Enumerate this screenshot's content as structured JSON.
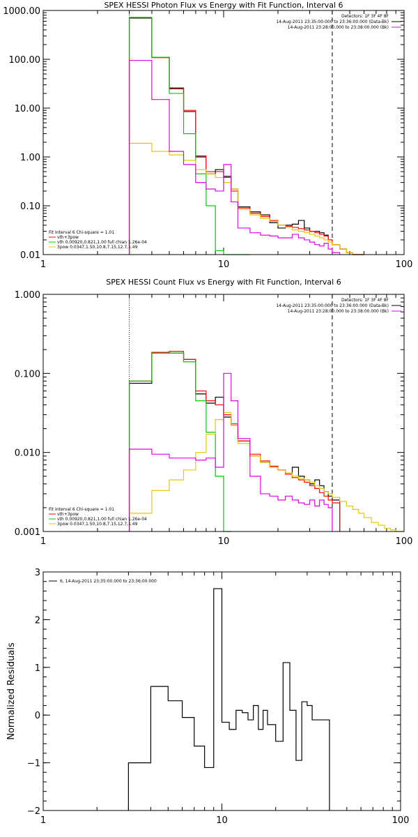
{
  "chart_data": [
    {
      "type": "line",
      "title": "SPEX HESSI Photon Flux vs Energy with Fit Function, Interval 6",
      "xscale": "log",
      "yscale": "log",
      "xlim": [
        1,
        100
      ],
      "ylim": [
        0.01,
        1000
      ],
      "x_ticks": [
        1,
        10,
        100
      ],
      "x_tick_labels": [
        "1",
        "10",
        "100"
      ],
      "y_ticks": [
        0.01,
        0.1,
        1,
        10,
        100,
        1000
      ],
      "y_tick_labels": [
        "0.01",
        "0.10",
        "1.00",
        "10.00",
        "100.00",
        "1000.00"
      ],
      "vlines": [
        {
          "x": 3,
          "style": "dotted",
          "color": "#000000"
        },
        {
          "x": 40,
          "style": "dashed",
          "color": "#000000"
        }
      ],
      "bin_edges": [
        3,
        4,
        5,
        6,
        7,
        8,
        9,
        10,
        11,
        12,
        14,
        16,
        18,
        20,
        22,
        24,
        26,
        28,
        30,
        32,
        34,
        36,
        38,
        40,
        44,
        48,
        52,
        56,
        60
      ],
      "series": [
        {
          "color": "#000000",
          "values": [
            700,
            110,
            25,
            8.5,
            1.0,
            0.45,
            0.55,
            0.4,
            0.22,
            0.095,
            0.075,
            0.065,
            0.045,
            0.035,
            0.04,
            0.042,
            0.05,
            0.035,
            0.03,
            0.03,
            0.028,
            0.025,
            0.02,
            0.016,
            0.013,
            0.011,
            0.01,
            0.0095
          ]
        },
        {
          "color": "#ff0000",
          "values": [
            720,
            108,
            26,
            9,
            1.05,
            0.5,
            0.5,
            0.38,
            0.2,
            0.09,
            0.07,
            0.06,
            0.05,
            0.04,
            0.038,
            0.036,
            0.034,
            0.032,
            0.03,
            0.028,
            0.026,
            0.024,
            0.02,
            0.016,
            0.013,
            0.011,
            0.01,
            0.0095
          ]
        },
        {
          "color": "#00c800",
          "values": [
            720,
            110,
            20,
            3,
            0.45,
            0.1,
            0.012,
            0.009,
            0.008,
            0.008
          ]
        },
        {
          "color": "#e6c800",
          "values": [
            1.9,
            1.3,
            1.1,
            0.85,
            0.55,
            0.45,
            0.38,
            0.3,
            0.22,
            0.085,
            0.065,
            0.055,
            0.048,
            0.04,
            0.036,
            0.032,
            0.03,
            0.028,
            0.026,
            0.024,
            0.022,
            0.02,
            0.018,
            0.016,
            0.013,
            0.011,
            0.01,
            0.0095
          ]
        },
        {
          "color": "#e000e0",
          "values": [
            95,
            15,
            1.3,
            0.7,
            0.3,
            0.22,
            0.2,
            0.7,
            0.12,
            0.035,
            0.028,
            0.025,
            0.024,
            0.022,
            0.022,
            0.026,
            0.022,
            0.02,
            0.018,
            0.016,
            0.015,
            0.017,
            0.013,
            0.011
          ]
        }
      ],
      "legend_top": {
        "placement": "top-right",
        "entries": [
          {
            "text": "Detectors: 1F 3F 4F 8F",
            "color": null
          },
          {
            "text": "14-Aug-2011 23:35:00.000 to 23:36:00.000 (Data-Bk)",
            "color": "#000000"
          },
          {
            "text": "14-Aug-2011 23:28:00.000 to 23:38:00.000 (Bk)",
            "color": "#e000e0"
          }
        ]
      },
      "legend_bottom": {
        "placement": "bottom-left",
        "entries": [
          {
            "text": "Fit Interval 6   Chi-square = 1.01",
            "color": null
          },
          {
            "text": "vth+3pow",
            "color": "#ff0000"
          },
          {
            "text": "vth 0.00920,0.821,1.00   full chian 1.26e-04",
            "color": "#00c800"
          },
          {
            "text": "3pow 0.0347,1.50,10.8,7.15,12.7,1.49",
            "color": "#e6c800"
          }
        ]
      }
    },
    {
      "type": "line",
      "title": "SPEX HESSI Count Flux vs Energy with Fit Function, Interval 6",
      "xscale": "log",
      "yscale": "log",
      "xlim": [
        1,
        100
      ],
      "ylim": [
        0.001,
        1
      ],
      "x_ticks": [
        1,
        10,
        100
      ],
      "x_tick_labels": [
        "1",
        "10",
        "100"
      ],
      "y_ticks": [
        0.001,
        0.01,
        0.1,
        1
      ],
      "y_tick_labels": [
        "0.001",
        "0.010",
        "0.100",
        "1.000"
      ],
      "vlines": [
        {
          "x": 3,
          "style": "dotted",
          "color": "#000000"
        },
        {
          "x": 40,
          "style": "dashed",
          "color": "#000000"
        }
      ],
      "bin_edges": [
        3,
        4,
        5,
        6,
        7,
        8,
        9,
        10,
        11,
        12,
        14,
        16,
        18,
        20,
        22,
        24,
        26,
        28,
        30,
        32,
        34,
        36,
        38,
        40,
        44,
        48,
        52,
        56,
        60,
        66,
        72,
        78,
        84,
        90,
        96,
        100
      ],
      "series": [
        {
          "color": "#000000",
          "values": [
            0.075,
            0.18,
            0.18,
            0.15,
            0.055,
            0.042,
            0.05,
            0.028,
            0.022,
            0.014,
            0.009,
            0.0075,
            0.0065,
            0.006,
            0.0055,
            0.0065,
            0.005,
            0.0045,
            0.004,
            0.0045,
            0.0038,
            0.0032,
            0.0028,
            0.0025
          ]
        },
        {
          "color": "#ff0000",
          "values": [
            0.08,
            0.185,
            0.19,
            0.15,
            0.06,
            0.045,
            0.04,
            0.03,
            0.023,
            0.014,
            0.0095,
            0.0078,
            0.0067,
            0.006,
            0.0053,
            0.0048,
            0.0045,
            0.0042,
            0.0038,
            0.0035,
            0.0031,
            0.0028,
            0.0025,
            0.0023
          ]
        },
        {
          "color": "#00c800",
          "values": [
            0.08,
            0.18,
            0.18,
            0.14,
            0.045,
            0.018,
            0.005,
            0.001
          ]
        },
        {
          "color": "#e6c800",
          "values": [
            0.0017,
            0.0033,
            0.0045,
            0.006,
            0.01,
            0.017,
            0.026,
            0.032,
            0.022,
            0.013,
            0.009,
            0.0075,
            0.0065,
            0.006,
            0.0055,
            0.005,
            0.0047,
            0.0045,
            0.0042,
            0.0038,
            0.0035,
            0.0032,
            0.003,
            0.0027,
            0.0024,
            0.0021,
            0.0019,
            0.0017,
            0.0015,
            0.0013,
            0.0012,
            0.0011,
            0.00105,
            0.001,
            0.001
          ]
        },
        {
          "color": "#e000e0",
          "values": [
            0.011,
            0.0095,
            0.0085,
            0.0085,
            0.008,
            0.0085,
            0.0065,
            0.1,
            0.045,
            0.015,
            0.005,
            0.003,
            0.0028,
            0.0025,
            0.0028,
            0.0025,
            0.0023,
            0.0022,
            0.0025,
            0.0021,
            0.0025,
            0.0022,
            0.002
          ]
        }
      ],
      "legend_top": {
        "placement": "top-right",
        "entries": [
          {
            "text": "Detectors: 1F 3F 4F 8F",
            "color": null
          },
          {
            "text": "14-Aug-2011 23:35:00.000 to 23:36:00.000 (Data-Bk)",
            "color": "#000000"
          },
          {
            "text": "14-Aug-2011 23:28:00.000 to 23:38:00.000 (Bk)",
            "color": "#e000e0"
          }
        ]
      },
      "legend_bottom": {
        "placement": "bottom-left",
        "entries": [
          {
            "text": "Fit Interval 6   Chi-square = 1.01",
            "color": null
          },
          {
            "text": "vth+3pow",
            "color": "#ff0000"
          },
          {
            "text": "vth 0.00920,0.821,1.00   full chian 1.26e-04",
            "color": "#00c800"
          },
          {
            "text": "3pow 0.0347,1.50,10.8,7.15,12.7,1.49",
            "color": "#e6c800"
          }
        ]
      }
    },
    {
      "type": "line",
      "title": "",
      "ylabel": "Normalized Residuals",
      "xscale": "log",
      "yscale": "linear",
      "xlim": [
        1,
        100
      ],
      "ylim": [
        -2,
        3
      ],
      "x_ticks": [
        1,
        10,
        100
      ],
      "x_tick_labels": [
        "1",
        "10",
        "100"
      ],
      "y_ticks": [
        -2,
        -1,
        0,
        1,
        2,
        3
      ],
      "y_tick_labels": [
        "−2",
        "−1",
        "0",
        "1",
        "2",
        "3"
      ],
      "vlines": [],
      "bin_edges": [
        3,
        4,
        5,
        6,
        7,
        8,
        9,
        10,
        11,
        12,
        13,
        14,
        15,
        16,
        17,
        18,
        20,
        22,
        24,
        26,
        28,
        30,
        32,
        34,
        36,
        38,
        40
      ],
      "series": [
        {
          "color": "#000000",
          "values": [
            -1.0,
            0.6,
            0.3,
            -0.05,
            -0.65,
            -1.1,
            2.65,
            -0.15,
            -0.3,
            0.1,
            0.05,
            -0.1,
            0.2,
            -0.3,
            0.1,
            -0.2,
            -0.55,
            1.1,
            0.1,
            -0.95,
            0.28,
            0.2,
            -0.1,
            -0.1,
            -0.1,
            -0.1
          ]
        }
      ],
      "legend_top": {
        "placement": "top-left",
        "entries": [
          {
            "text": "6, 14-Aug-2011 23:35:00.000 to 23:36:00.000",
            "color": "#000000"
          }
        ]
      },
      "legend_bottom": {
        "placement": "",
        "entries": []
      }
    }
  ]
}
